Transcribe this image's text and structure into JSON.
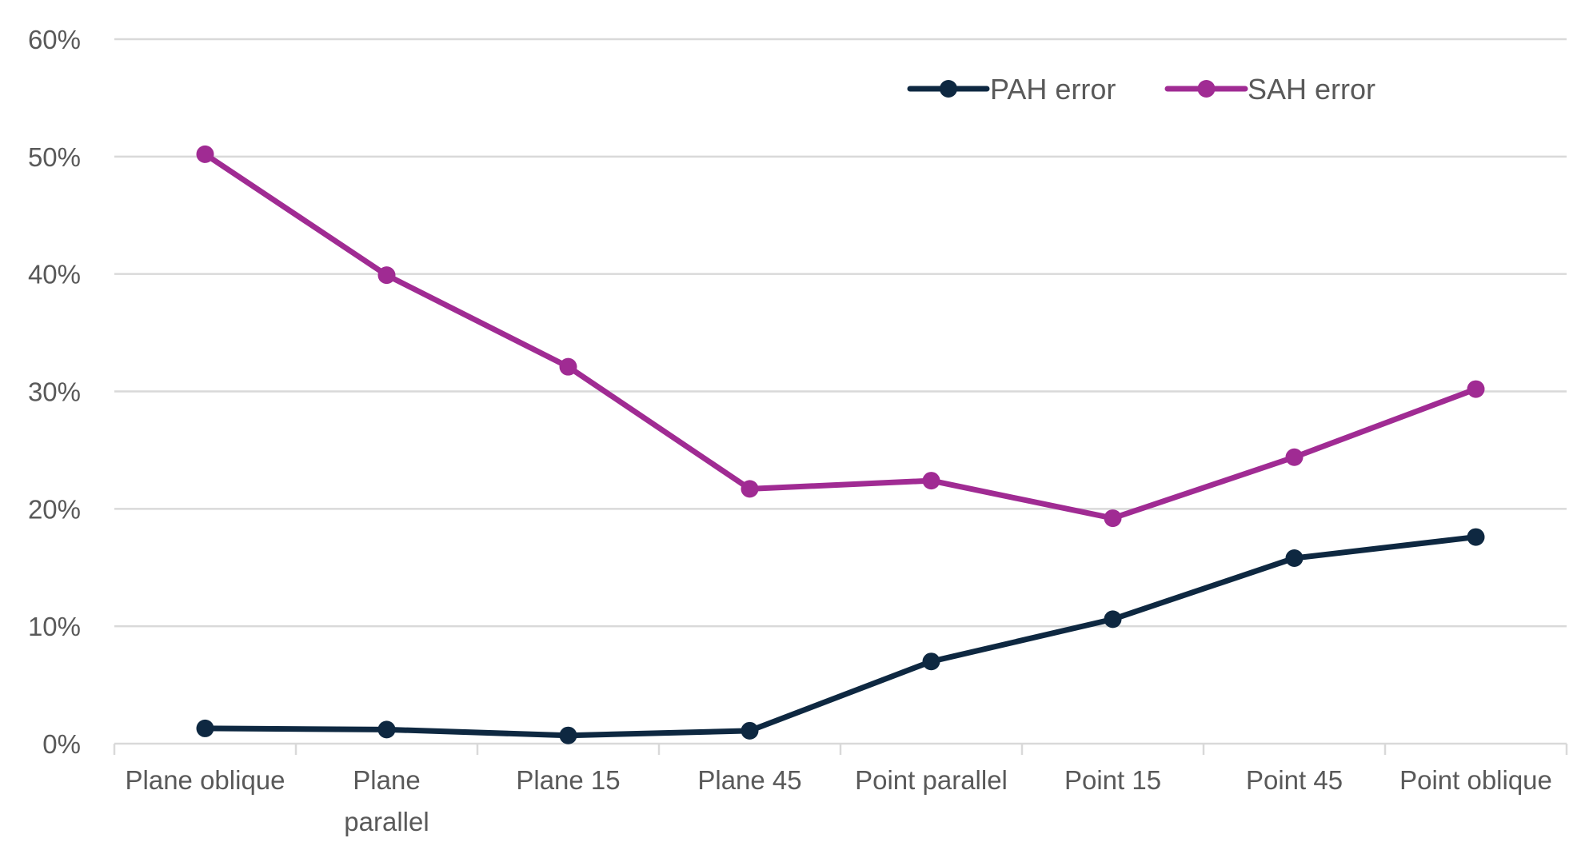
{
  "chart_data": {
    "type": "line",
    "title": "",
    "xlabel": "",
    "ylabel": "",
    "categories": [
      [
        "Plane oblique"
      ],
      [
        "Plane",
        "parallel"
      ],
      [
        "Plane 15"
      ],
      [
        "Plane 45"
      ],
      [
        "Point parallel"
      ],
      [
        "Point 15"
      ],
      [
        "Point 45"
      ],
      [
        "Point oblique"
      ]
    ],
    "y_ticks": [
      "0%",
      "10%",
      "20%",
      "30%",
      "40%",
      "50%",
      "60%"
    ],
    "ylim": [
      0,
      0.6
    ],
    "grid": true,
    "legend_position": "top-right",
    "series": [
      {
        "name": "PAH error",
        "color": "#0e2841",
        "values": [
          0.013,
          0.012,
          0.007,
          0.011,
          0.07,
          0.106,
          0.158,
          0.176
        ]
      },
      {
        "name": "SAH error",
        "color": "#a02b93",
        "values": [
          0.502,
          0.399,
          0.321,
          0.217,
          0.224,
          0.192,
          0.244,
          0.302
        ]
      }
    ]
  }
}
